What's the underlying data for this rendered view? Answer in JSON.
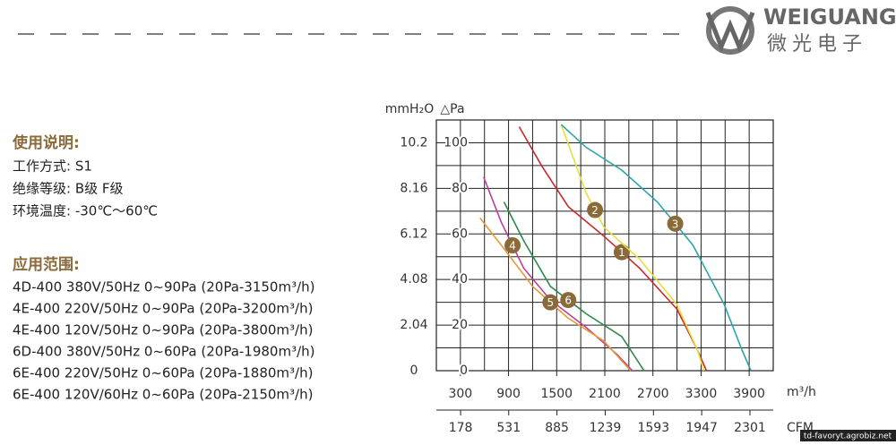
{
  "header": {
    "brand": "WEIGUANG",
    "brand_cn": "微光电子"
  },
  "usage": {
    "title": "使用说明:",
    "lines": [
      "工作方式: S1",
      "绝缘等级: B级  F级",
      "环境温度: -30℃～60℃"
    ]
  },
  "application": {
    "title": "应用范围:",
    "rows": [
      "4D-400  380V/50Hz  0~90Pa  (20Pa-3150m³/h)",
      "4E-400  220V/50Hz  0~90Pa  (20Pa-3200m³/h)",
      "4E-400  120V/50Hz  0~90Pa  (20Pa-3800m³/h)",
      "6D-400  380V/50Hz  0~60Pa  (20Pa-1980m³/h)",
      "6E-400  220V/50Hz  0~60Pa  (20Pa-1880m³/h)",
      "6E-400  120V/60Hz  0~60Pa  (20Pa-2150m³/h)"
    ]
  },
  "chart_data": {
    "type": "line",
    "x_label": "m³/h",
    "x2_label": "CFM",
    "y_label": "△Pa",
    "y2_label": "mmH₂O",
    "xlim": [
      0,
      4200
    ],
    "xticks": [
      300,
      900,
      1500,
      2100,
      2700,
      3300,
      3900
    ],
    "x2lim": [
      0,
      2472
    ],
    "x2ticks": [
      178,
      531,
      885,
      1239,
      1593,
      1947,
      2301
    ],
    "ylim": [
      0,
      110
    ],
    "yticks": [
      0,
      20,
      40,
      60,
      80,
      100
    ],
    "y2lim": [
      0,
      11.22
    ],
    "y2ticks": [
      0,
      2.04,
      4.08,
      6.12,
      8.16,
      10.2
    ],
    "grid": true,
    "minor_grid": true,
    "series": [
      {
        "name": "1",
        "color": "#c8282e",
        "x": [
          1033,
          1311,
          1644,
          2089,
          2533,
          3000,
          3256,
          3367
        ],
        "values": [
          107,
          90,
          72,
          59,
          45,
          27,
          9,
          0
        ]
      },
      {
        "name": "2",
        "color": "#e6df3c",
        "x": [
          1556,
          1700,
          1867,
          2089,
          2533,
          3000,
          3256,
          3333
        ],
        "values": [
          108,
          94,
          78,
          63,
          49,
          29,
          9,
          0
        ]
      },
      {
        "name": "3",
        "color": "#2aa6a6",
        "x": [
          1556,
          1867,
          2311,
          2756,
          3200,
          3589,
          3811,
          3922
        ],
        "values": [
          108,
          98,
          88,
          74,
          55,
          29,
          9,
          0
        ]
      },
      {
        "name": "4",
        "color": "#c03c9a",
        "x": [
          589,
          811,
          1089,
          1422,
          1867,
          2256,
          2444
        ],
        "values": [
          85,
          65,
          45,
          31,
          19,
          7,
          0
        ]
      },
      {
        "name": "5",
        "color": "#e59a3a",
        "x": [
          544,
          811,
          1200,
          1644,
          2089,
          2422
        ],
        "values": [
          67,
          55,
          37,
          23,
          13,
          0
        ]
      },
      {
        "name": "6",
        "color": "#2a8a4a",
        "x": [
          844,
          1089,
          1422,
          1867,
          2311,
          2589
        ],
        "values": [
          74,
          57,
          37,
          25,
          15,
          0
        ]
      }
    ]
  }
}
